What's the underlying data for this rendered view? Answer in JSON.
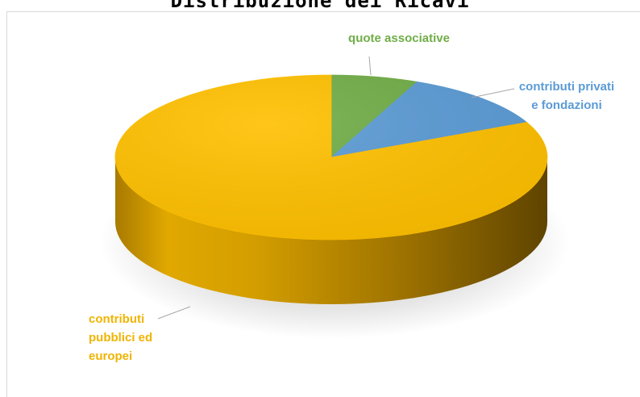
{
  "chart_data": {
    "type": "pie",
    "style": "3d",
    "title": "Distribuzione dei Ricavi",
    "slices": [
      {
        "label": "quote associative",
        "lines": [
          "quote associative"
        ],
        "value": 6.5,
        "color": "#70ad47"
      },
      {
        "label": "contributi privati e fondazioni",
        "lines": [
          "contributi privati",
          "e fondazioni"
        ],
        "value": 11.5,
        "color": "#5b9bd5"
      },
      {
        "label": "contributi pubblici ed europei",
        "lines": [
          "contributi",
          "pubblici ed",
          "europei"
        ],
        "value": 82,
        "color": "#ffc000"
      }
    ]
  }
}
